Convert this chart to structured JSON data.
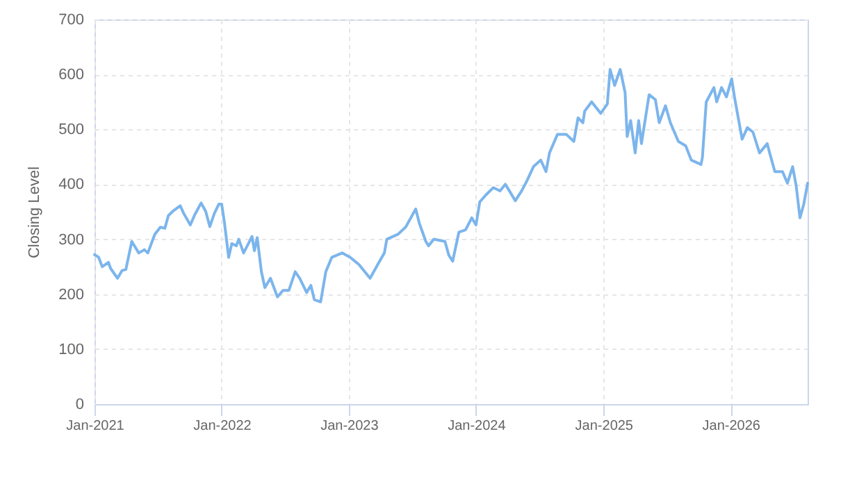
{
  "chart_data": {
    "type": "line",
    "ylabel": "Closing Level",
    "x": [
      "2021-01-01",
      "2021-01-13",
      "2021-01-23",
      "2021-02-10",
      "2021-02-16",
      "2021-03-08",
      "2021-03-21",
      "2021-04-01",
      "2021-04-18",
      "2021-05-08",
      "2021-05-24",
      "2021-06-03",
      "2021-06-23",
      "2021-07-09",
      "2021-07-22",
      "2021-08-01",
      "2021-08-14",
      "2021-09-04",
      "2021-09-14",
      "2021-10-03",
      "2021-10-16",
      "2021-11-03",
      "2021-11-16",
      "2021-11-28",
      "2021-12-11",
      "2021-12-24",
      "2022-01-01",
      "2022-01-09",
      "2022-01-21",
      "2022-01-30",
      "2022-02-12",
      "2022-02-19",
      "2022-03-05",
      "2022-03-29",
      "2022-04-05",
      "2022-04-13",
      "2022-04-25",
      "2022-05-05",
      "2022-05-21",
      "2022-06-10",
      "2022-06-26",
      "2022-07-13",
      "2022-07-31",
      "2022-08-13",
      "2022-09-02",
      "2022-09-14",
      "2022-09-24",
      "2022-10-12",
      "2022-10-27",
      "2022-11-13",
      "2022-12-13",
      "2023-01-05",
      "2023-01-30",
      "2023-03-03",
      "2023-03-25",
      "2023-04-13",
      "2023-04-20",
      "2023-05-22",
      "2023-06-13",
      "2023-06-28",
      "2023-07-12",
      "2023-07-22",
      "2023-08-10",
      "2023-08-18",
      "2023-09-02",
      "2023-10-04",
      "2023-10-15",
      "2023-10-26",
      "2023-11-13",
      "2023-12-02",
      "2023-12-20",
      "2024-01-01",
      "2024-01-12",
      "2024-01-30",
      "2024-02-20",
      "2024-03-10",
      "2024-03-25",
      "2024-04-05",
      "2024-04-23",
      "2024-05-12",
      "2024-05-26",
      "2024-06-14",
      "2024-07-05",
      "2024-07-20",
      "2024-07-30",
      "2024-08-22",
      "2024-09-16",
      "2024-10-08",
      "2024-10-20",
      "2024-11-03",
      "2024-11-08",
      "2024-11-28",
      "2024-12-24",
      "2025-01-12",
      "2025-01-20",
      "2025-02-02",
      "2025-02-18",
      "2025-03-04",
      "2025-03-10",
      "2025-03-20",
      "2025-04-02",
      "2025-04-12",
      "2025-04-20",
      "2025-05-12",
      "2025-05-30",
      "2025-06-10",
      "2025-06-28",
      "2025-07-12",
      "2025-08-04",
      "2025-08-25",
      "2025-09-10",
      "2025-10-08",
      "2025-10-12",
      "2025-10-23",
      "2025-11-14",
      "2025-11-22",
      "2025-12-06",
      "2025-12-20",
      "2026-01-04",
      "2026-01-12",
      "2026-02-03",
      "2026-02-18",
      "2026-03-06",
      "2026-03-25",
      "2026-04-16",
      "2026-04-23",
      "2026-05-08",
      "2026-05-30",
      "2026-06-13",
      "2026-06-28",
      "2026-07-08",
      "2026-07-19",
      "2026-07-30",
      "2026-08-10"
    ],
    "series": [
      {
        "color": "#7cb5ec",
        "values": [
          272,
          267,
          250,
          258,
          247,
          229,
          243,
          245,
          296,
          275,
          281,
          275,
          309,
          322,
          320,
          343,
          351,
          361,
          347,
          326,
          345,
          366,
          351,
          323,
          347,
          364,
          364,
          330,
          267,
          292,
          288,
          300,
          275,
          305,
          279,
          303,
          241,
          212,
          229,
          195,
          207,
          207,
          241,
          229,
          203,
          216,
          190,
          186,
          241,
          267,
          275,
          267,
          254,
          229,
          254,
          275,
          300,
          309,
          322,
          339,
          355,
          330,
          296,
          288,
          300,
          296,
          271,
          260,
          313,
          317,
          339,
          326,
          368,
          381,
          394,
          388,
          400,
          389,
          370,
          389,
          406,
          432,
          444,
          423,
          457,
          491,
          491,
          478,
          521,
          512,
          533,
          550,
          529,
          546,
          609,
          580,
          609,
          567,
          487,
          516,
          457,
          516,
          474,
          563,
          554,
          512,
          543,
          512,
          478,
          470,
          444,
          436,
          449,
          550,
          576,
          550,
          576,
          559,
          592,
          559,
          482,
          503,
          495,
          457,
          474,
          457,
          423,
          423,
          402,
          432,
          398,
          339,
          364,
          402
        ]
      }
    ],
    "xlim": [
      "2021-01-01",
      "2026-08-10"
    ],
    "xticks": [
      {
        "value": "2021-01-01",
        "label": "Jan-2021"
      },
      {
        "value": "2022-01-01",
        "label": "Jan-2022"
      },
      {
        "value": "2023-01-01",
        "label": "Jan-2023"
      },
      {
        "value": "2024-01-01",
        "label": "Jan-2024"
      },
      {
        "value": "2025-01-01",
        "label": "Jan-2025"
      },
      {
        "value": "2026-01-01",
        "label": "Jan-2026"
      }
    ],
    "ylim": [
      0,
      700
    ],
    "yticks": [
      0,
      100,
      200,
      300,
      400,
      500,
      600,
      700
    ],
    "grid": true
  }
}
